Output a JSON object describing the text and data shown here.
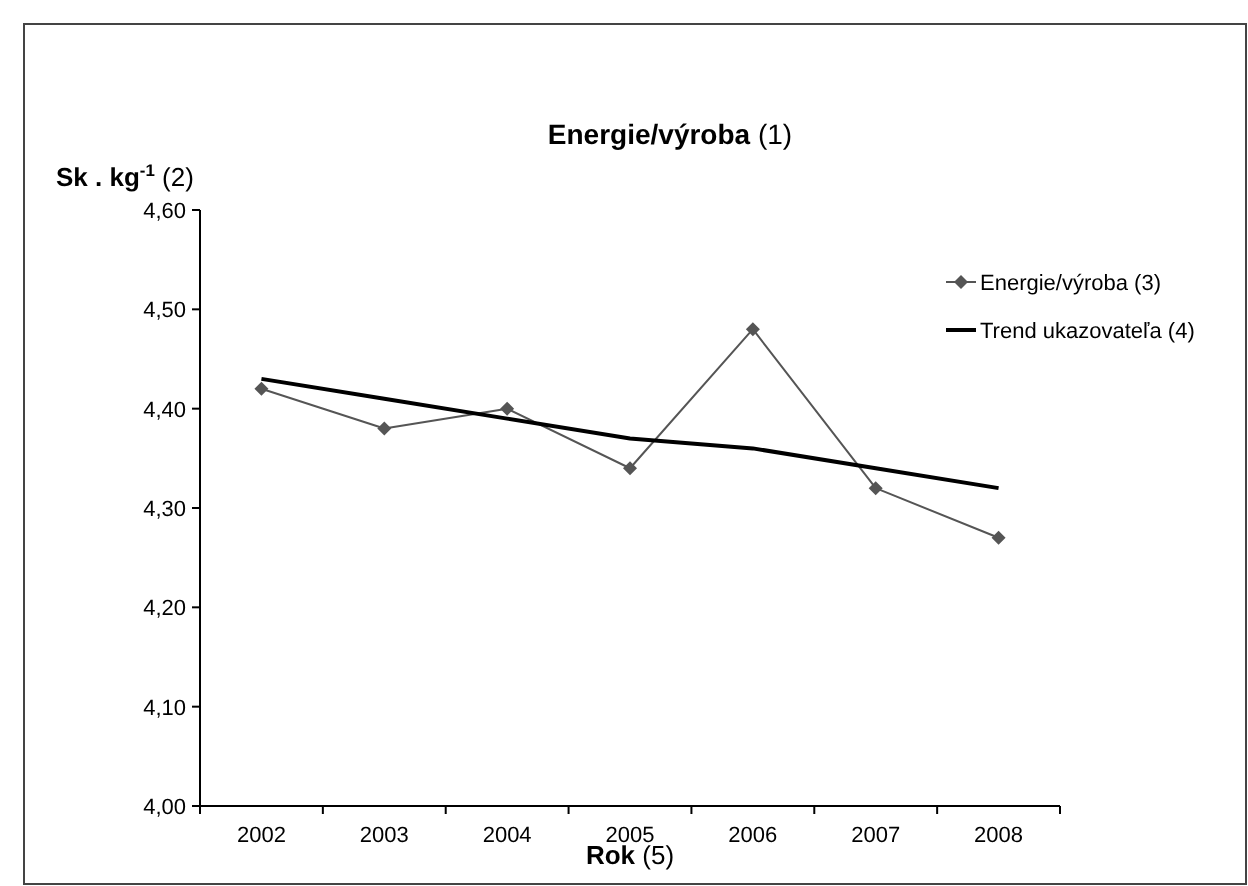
{
  "chart_data": {
    "type": "line",
    "title": "Energie/výroba (1)",
    "ylabel": "Sk . kg$^{-1}$ (2)",
    "xlabel": "Rok (5)",
    "categories": [
      "2002",
      "2003",
      "2004",
      "2005",
      "2006",
      "2007",
      "2008"
    ],
    "series": [
      {
        "name": "Energie/výroba (3)",
        "color": "#555555",
        "marker": "diamond",
        "values": [
          4.42,
          4.38,
          4.4,
          4.34,
          4.48,
          4.32,
          4.27
        ]
      },
      {
        "name": "Trend ukazovateľa (4)",
        "color": "#000000",
        "marker": "none",
        "values": [
          4.43,
          4.41,
          4.39,
          4.37,
          4.36,
          4.34,
          4.32
        ]
      }
    ],
    "ylim": [
      4.0,
      4.6
    ],
    "yticks": [
      {
        "value": 4.0,
        "label": "4,00"
      },
      {
        "value": 4.1,
        "label": "4,10"
      },
      {
        "value": 4.2,
        "label": "4,20"
      },
      {
        "value": 4.3,
        "label": "4,30"
      },
      {
        "value": 4.4,
        "label": "4,40"
      },
      {
        "value": 4.5,
        "label": "4,50"
      },
      {
        "value": 4.6,
        "label": "4,60"
      }
    ],
    "legend": "right",
    "grid": false
  }
}
